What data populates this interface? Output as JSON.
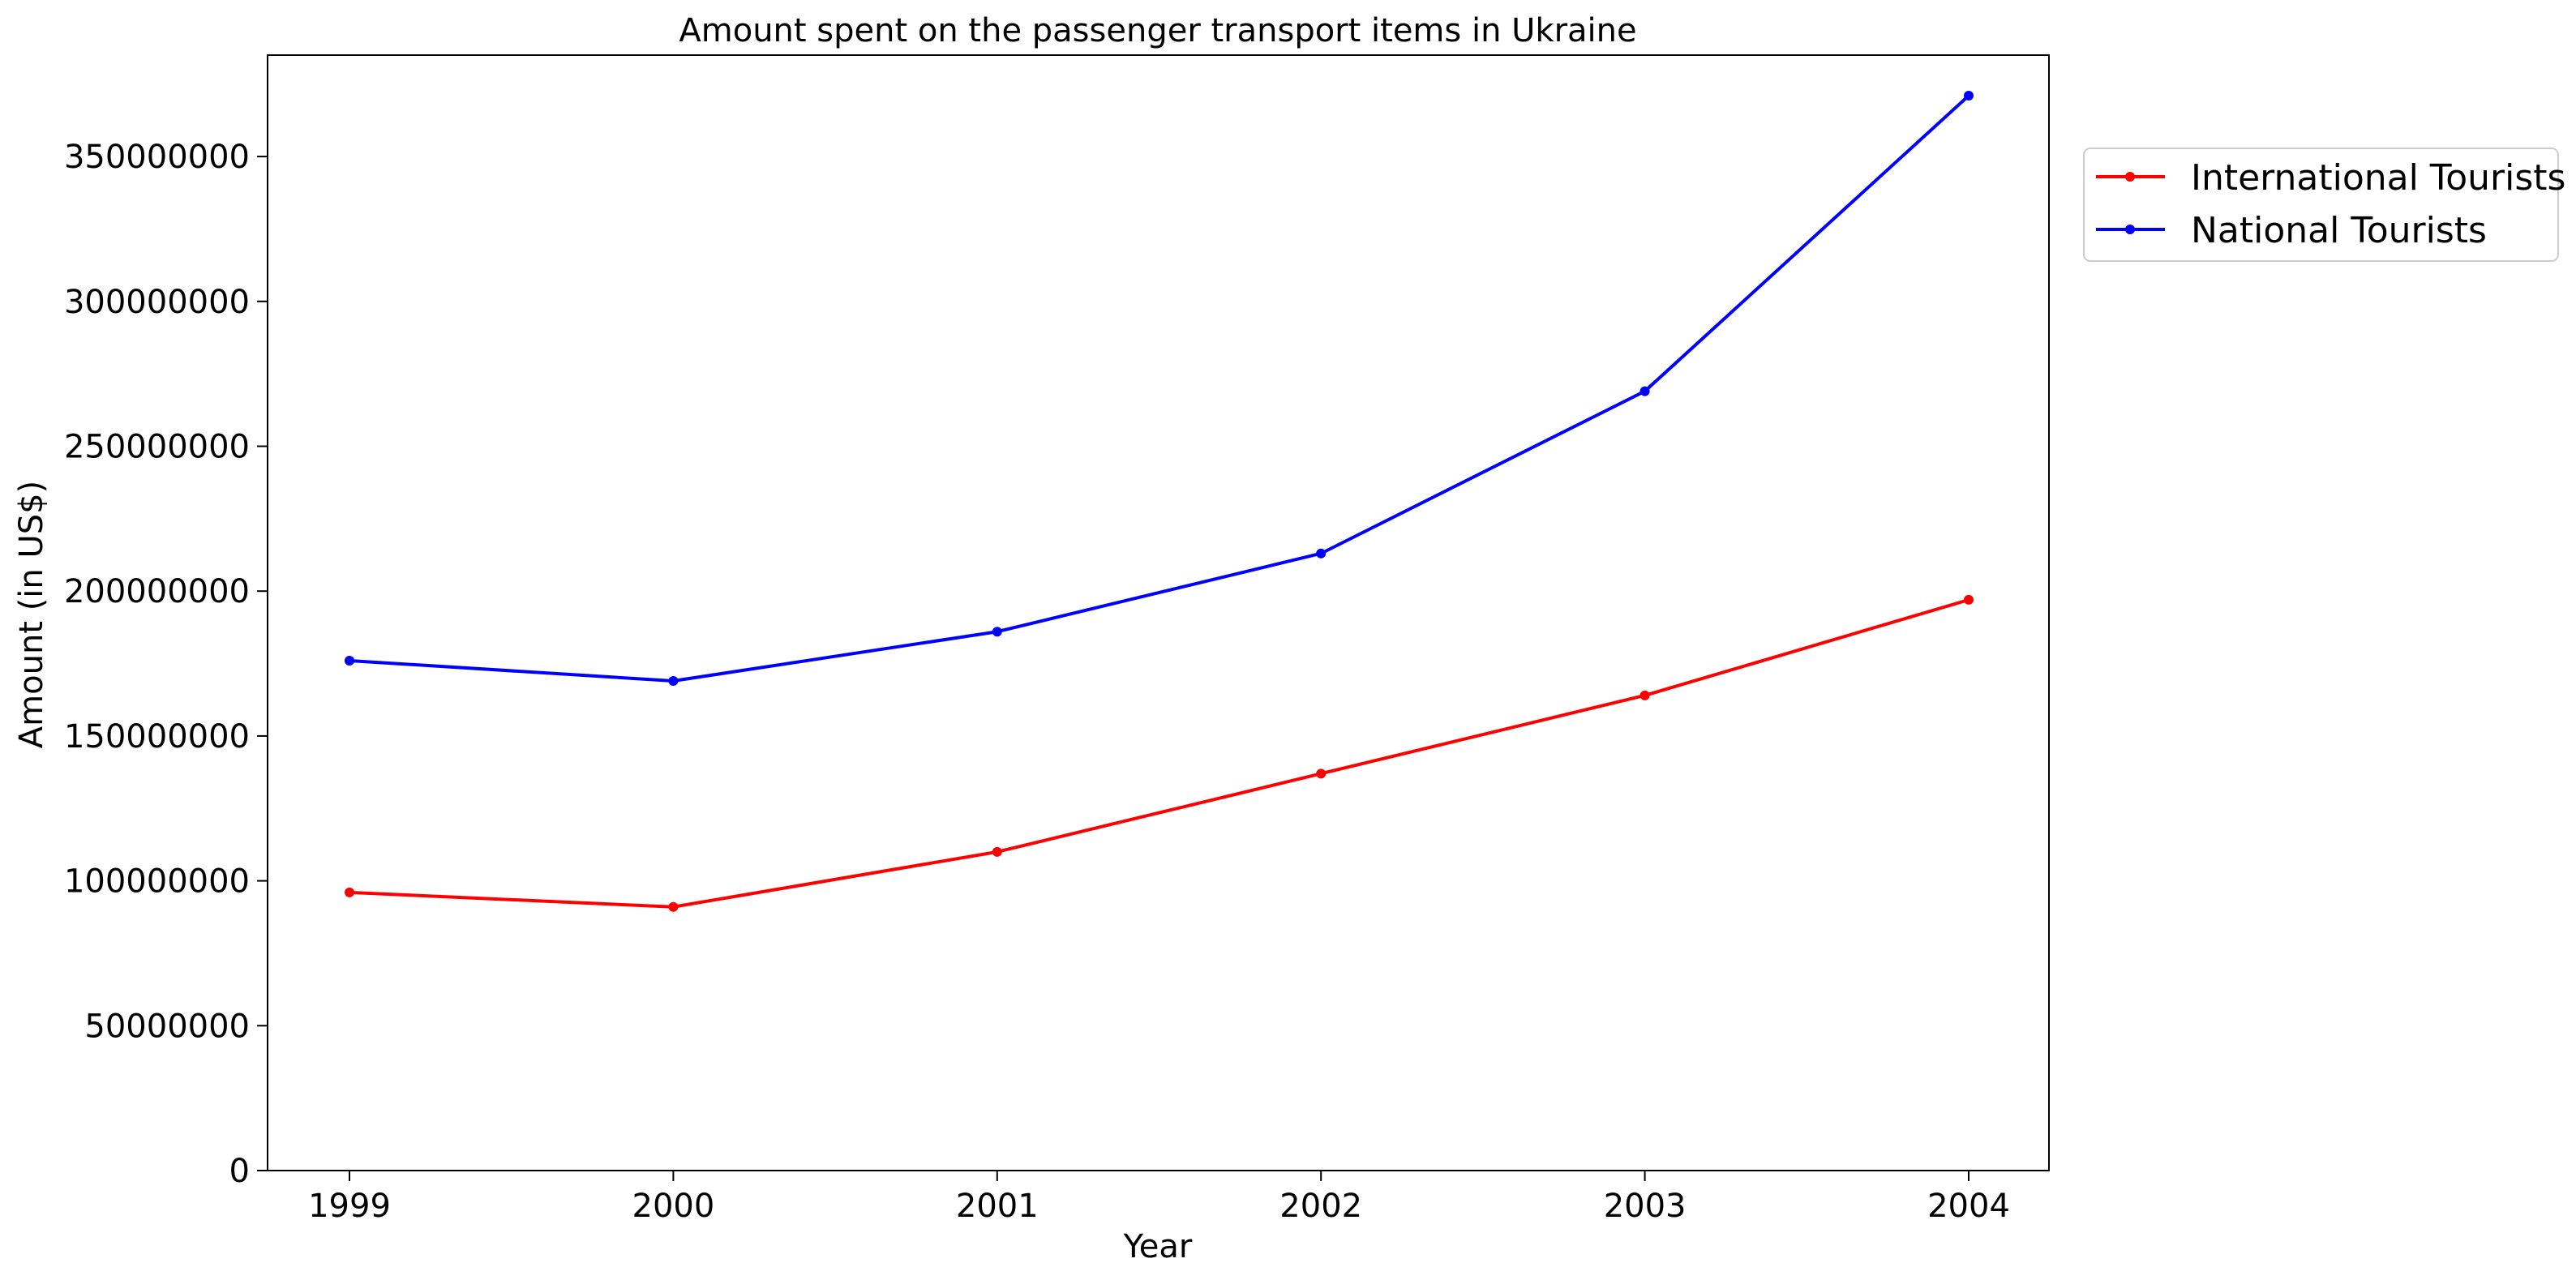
{
  "chart_data": {
    "type": "line",
    "title": "Amount spent on the passenger transport items in Ukraine",
    "xlabel": "Year",
    "ylabel": "Amount (in US$)",
    "categories": [
      "1999",
      "2000",
      "2001",
      "2002",
      "2003",
      "2004"
    ],
    "series": [
      {
        "name": "International Tourists",
        "color": "#ff0000",
        "values": [
          96000000,
          91000000,
          110000000,
          137000000,
          164000000,
          197000000
        ]
      },
      {
        "name": "National Tourists",
        "color": "#0000ff",
        "values": [
          176000000,
          169000000,
          186000000,
          213000000,
          269000000,
          371000000
        ]
      }
    ],
    "ylim": [
      0,
      385000000
    ],
    "yticks": [
      0,
      50000000,
      100000000,
      150000000,
      200000000,
      250000000,
      300000000,
      350000000
    ],
    "ytick_labels": [
      "0",
      "50000000",
      "100000000",
      "150000000",
      "200000000",
      "250000000",
      "300000000",
      "350000000"
    ],
    "grid": false,
    "legend_position": "upper right, outside plot area",
    "marker": "dot"
  }
}
